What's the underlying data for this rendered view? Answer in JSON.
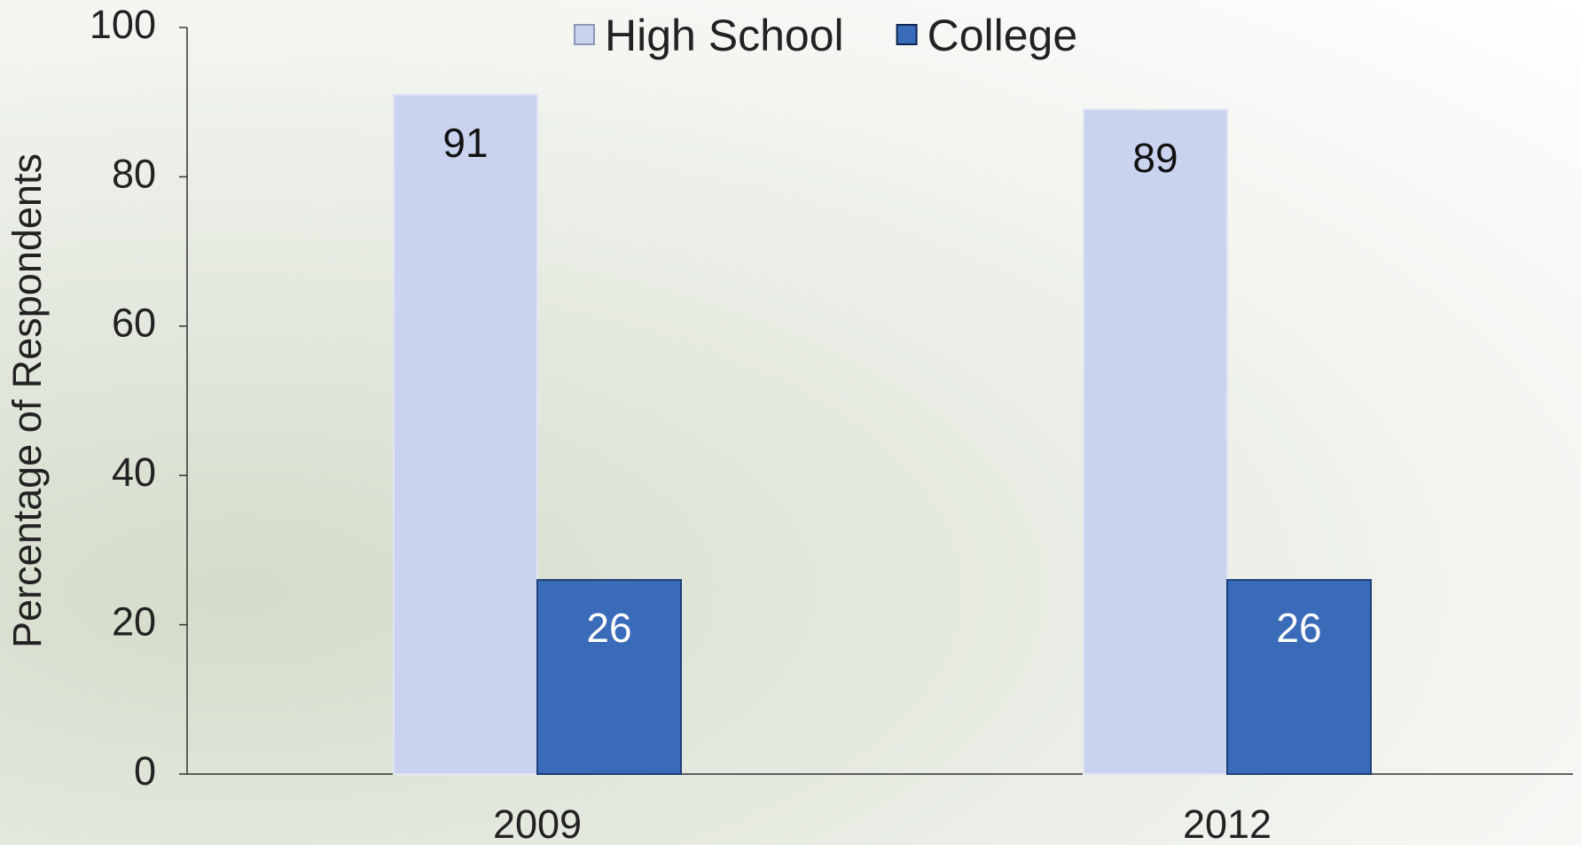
{
  "chart_data": {
    "type": "bar",
    "y_label": "Percentage of Respondents",
    "categories": [
      "2009",
      "2012"
    ],
    "series": [
      {
        "name": "High School",
        "color": "#c9d3ee",
        "values": [
          91,
          89
        ]
      },
      {
        "name": "College",
        "color": "#3a6bb8",
        "values": [
          26,
          26
        ]
      }
    ],
    "ylim": [
      0,
      100
    ],
    "yticks": [
      0,
      20,
      40,
      60,
      80,
      100
    ],
    "legend": "top"
  }
}
